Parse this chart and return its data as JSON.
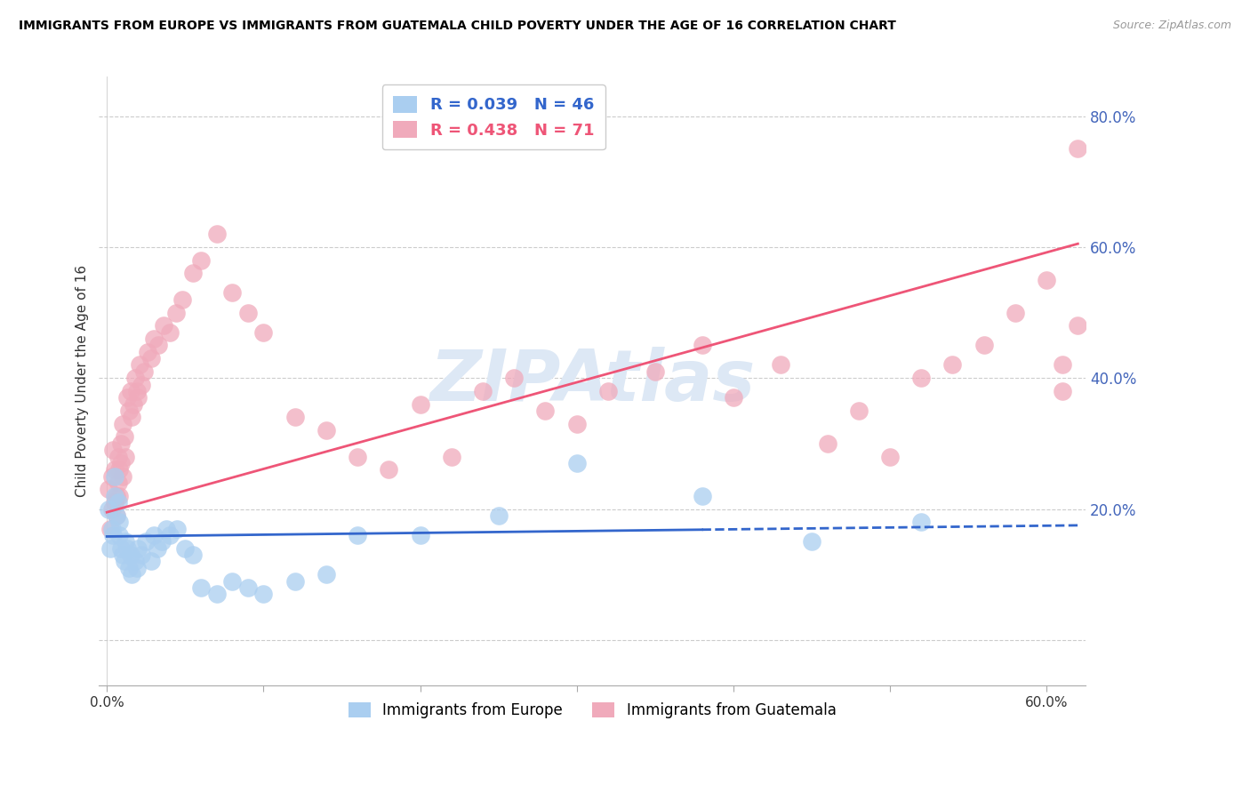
{
  "title": "IMMIGRANTS FROM EUROPE VS IMMIGRANTS FROM GUATEMALA CHILD POVERTY UNDER THE AGE OF 16 CORRELATION CHART",
  "source": "Source: ZipAtlas.com",
  "ylabel": "Child Poverty Under the Age of 16",
  "right_yticks": [
    0.0,
    0.2,
    0.4,
    0.6,
    0.8
  ],
  "right_yticklabels": [
    "",
    "20.0%",
    "40.0%",
    "60.0%",
    "80.0%"
  ],
  "xlim": [
    -0.005,
    0.625
  ],
  "ylim": [
    -0.07,
    0.86
  ],
  "europe_R": 0.039,
  "europe_N": 46,
  "guatemala_R": 0.438,
  "guatemala_N": 71,
  "europe_color": "#aacef0",
  "guatemala_color": "#f0aabb",
  "europe_line_color": "#3366cc",
  "guatemala_line_color": "#ee5577",
  "legend_europe_label": "Immigrants from Europe",
  "legend_guatemala_label": "Immigrants from Guatemala",
  "watermark": "ZIPAtlas",
  "watermark_color": "#dde8f5",
  "europe_scatter_x": [
    0.001,
    0.002,
    0.003,
    0.004,
    0.005,
    0.005,
    0.006,
    0.007,
    0.008,
    0.008,
    0.009,
    0.01,
    0.011,
    0.012,
    0.013,
    0.014,
    0.015,
    0.016,
    0.018,
    0.019,
    0.02,
    0.022,
    0.025,
    0.028,
    0.03,
    0.032,
    0.035,
    0.038,
    0.04,
    0.045,
    0.05,
    0.055,
    0.06,
    0.07,
    0.08,
    0.09,
    0.1,
    0.12,
    0.14,
    0.16,
    0.2,
    0.25,
    0.3,
    0.38,
    0.45,
    0.52
  ],
  "europe_scatter_y": [
    0.2,
    0.14,
    0.17,
    0.16,
    0.22,
    0.25,
    0.19,
    0.21,
    0.16,
    0.18,
    0.14,
    0.13,
    0.12,
    0.15,
    0.14,
    0.11,
    0.13,
    0.1,
    0.12,
    0.11,
    0.14,
    0.13,
    0.15,
    0.12,
    0.16,
    0.14,
    0.15,
    0.17,
    0.16,
    0.17,
    0.14,
    0.13,
    0.08,
    0.07,
    0.09,
    0.08,
    0.07,
    0.09,
    0.1,
    0.16,
    0.16,
    0.19,
    0.27,
    0.22,
    0.15,
    0.18
  ],
  "guatemala_scatter_x": [
    0.001,
    0.002,
    0.003,
    0.003,
    0.004,
    0.005,
    0.005,
    0.006,
    0.006,
    0.007,
    0.007,
    0.008,
    0.008,
    0.009,
    0.009,
    0.01,
    0.01,
    0.011,
    0.012,
    0.013,
    0.014,
    0.015,
    0.016,
    0.017,
    0.018,
    0.019,
    0.02,
    0.021,
    0.022,
    0.024,
    0.026,
    0.028,
    0.03,
    0.033,
    0.036,
    0.04,
    0.044,
    0.048,
    0.055,
    0.06,
    0.07,
    0.08,
    0.09,
    0.1,
    0.12,
    0.14,
    0.16,
    0.18,
    0.2,
    0.22,
    0.24,
    0.26,
    0.28,
    0.3,
    0.32,
    0.35,
    0.38,
    0.4,
    0.43,
    0.46,
    0.48,
    0.5,
    0.52,
    0.54,
    0.56,
    0.58,
    0.6,
    0.61,
    0.61,
    0.62,
    0.62
  ],
  "guatemala_scatter_y": [
    0.23,
    0.17,
    0.2,
    0.25,
    0.29,
    0.21,
    0.26,
    0.19,
    0.22,
    0.24,
    0.28,
    0.22,
    0.26,
    0.3,
    0.27,
    0.25,
    0.33,
    0.31,
    0.28,
    0.37,
    0.35,
    0.38,
    0.34,
    0.36,
    0.4,
    0.38,
    0.37,
    0.42,
    0.39,
    0.41,
    0.44,
    0.43,
    0.46,
    0.45,
    0.48,
    0.47,
    0.5,
    0.52,
    0.56,
    0.58,
    0.62,
    0.53,
    0.5,
    0.47,
    0.34,
    0.32,
    0.28,
    0.26,
    0.36,
    0.28,
    0.38,
    0.4,
    0.35,
    0.33,
    0.38,
    0.41,
    0.45,
    0.37,
    0.42,
    0.3,
    0.35,
    0.28,
    0.4,
    0.42,
    0.45,
    0.5,
    0.55,
    0.38,
    0.42,
    0.48,
    0.75
  ],
  "eu_line_x_start": 0.0,
  "eu_line_x_end": 0.62,
  "eu_line_y_start": 0.158,
  "eu_line_y_end": 0.175,
  "eu_line_solid_end": 0.38,
  "gt_line_x_start": 0.0,
  "gt_line_x_end": 0.62,
  "gt_line_y_start": 0.195,
  "gt_line_y_end": 0.605
}
